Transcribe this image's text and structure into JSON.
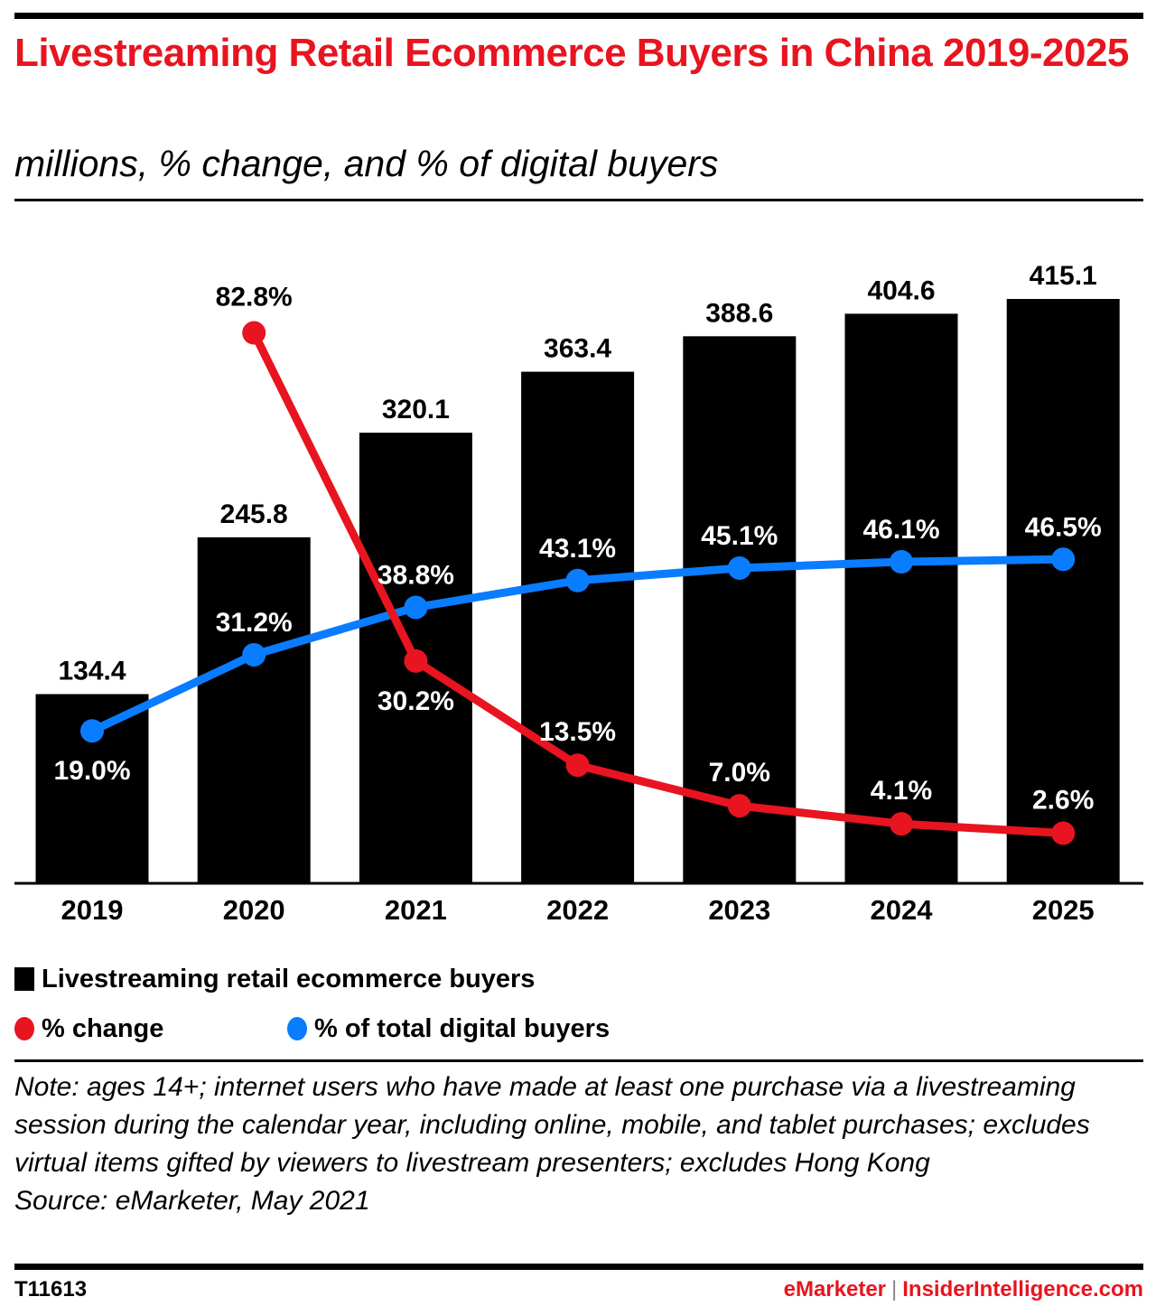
{
  "header": {
    "title": "Livestreaming Retail Ecommerce Buyers in China 2019-2025",
    "subtitle": "millions, % change, and % of digital buyers"
  },
  "colors": {
    "title": "#e8141f",
    "bars": "#000000",
    "pct_change": "#e8141f",
    "pct_digital": "#0a7cff"
  },
  "chart_data": {
    "type": "bar",
    "title": "Livestreaming Retail Ecommerce Buyers in China 2019-2025",
    "subtitle": "millions, % change, and % of digital buyers",
    "xlabel": "",
    "ylabel": "",
    "categories": [
      "2019",
      "2020",
      "2021",
      "2022",
      "2023",
      "2024",
      "2025"
    ],
    "ylim": [
      0,
      415.1
    ],
    "pct_ylim": [
      0,
      82.8
    ],
    "grid": false,
    "legend_position": "bottom-left",
    "series": [
      {
        "name": "Livestreaming retail ecommerce buyers",
        "type": "bar",
        "color": "#000000",
        "values": [
          134.4,
          245.8,
          320.1,
          363.4,
          388.6,
          404.6,
          415.1
        ],
        "labels": [
          "134.4",
          "245.8",
          "320.1",
          "363.4",
          "388.6",
          "404.6",
          "415.1"
        ]
      },
      {
        "name": "% change",
        "type": "line",
        "color": "#e8141f",
        "values": [
          null,
          82.8,
          30.2,
          13.5,
          7.0,
          4.1,
          2.6
        ],
        "labels": [
          "",
          "82.8%",
          "30.2%",
          "13.5%",
          "7.0%",
          "4.1%",
          "2.6%"
        ]
      },
      {
        "name": "% of total digital buyers",
        "type": "line",
        "color": "#0a7cff",
        "values": [
          19.0,
          31.2,
          38.8,
          43.1,
          45.1,
          46.1,
          46.5
        ],
        "labels": [
          "19.0%",
          "31.2%",
          "38.8%",
          "43.1%",
          "45.1%",
          "46.1%",
          "46.5%"
        ]
      }
    ]
  },
  "legend": {
    "bars": "Livestreaming retail ecommerce buyers",
    "pct_change": "% change",
    "pct_digital": "% of total digital buyers"
  },
  "note": {
    "text": "Note: ages 14+; internet users who have made at least one purchase via a livestreaming session during the calendar year, including online, mobile, and tablet purchases; excludes virtual items gifted by viewers to livestream presenters; excludes Hong Kong",
    "source": "Source: eMarketer, May 2021"
  },
  "footer": {
    "chart_id": "T11613",
    "brand_emarketer": "eMarketer",
    "separator": "|",
    "brand_insider": "InsiderIntelligence.com"
  }
}
